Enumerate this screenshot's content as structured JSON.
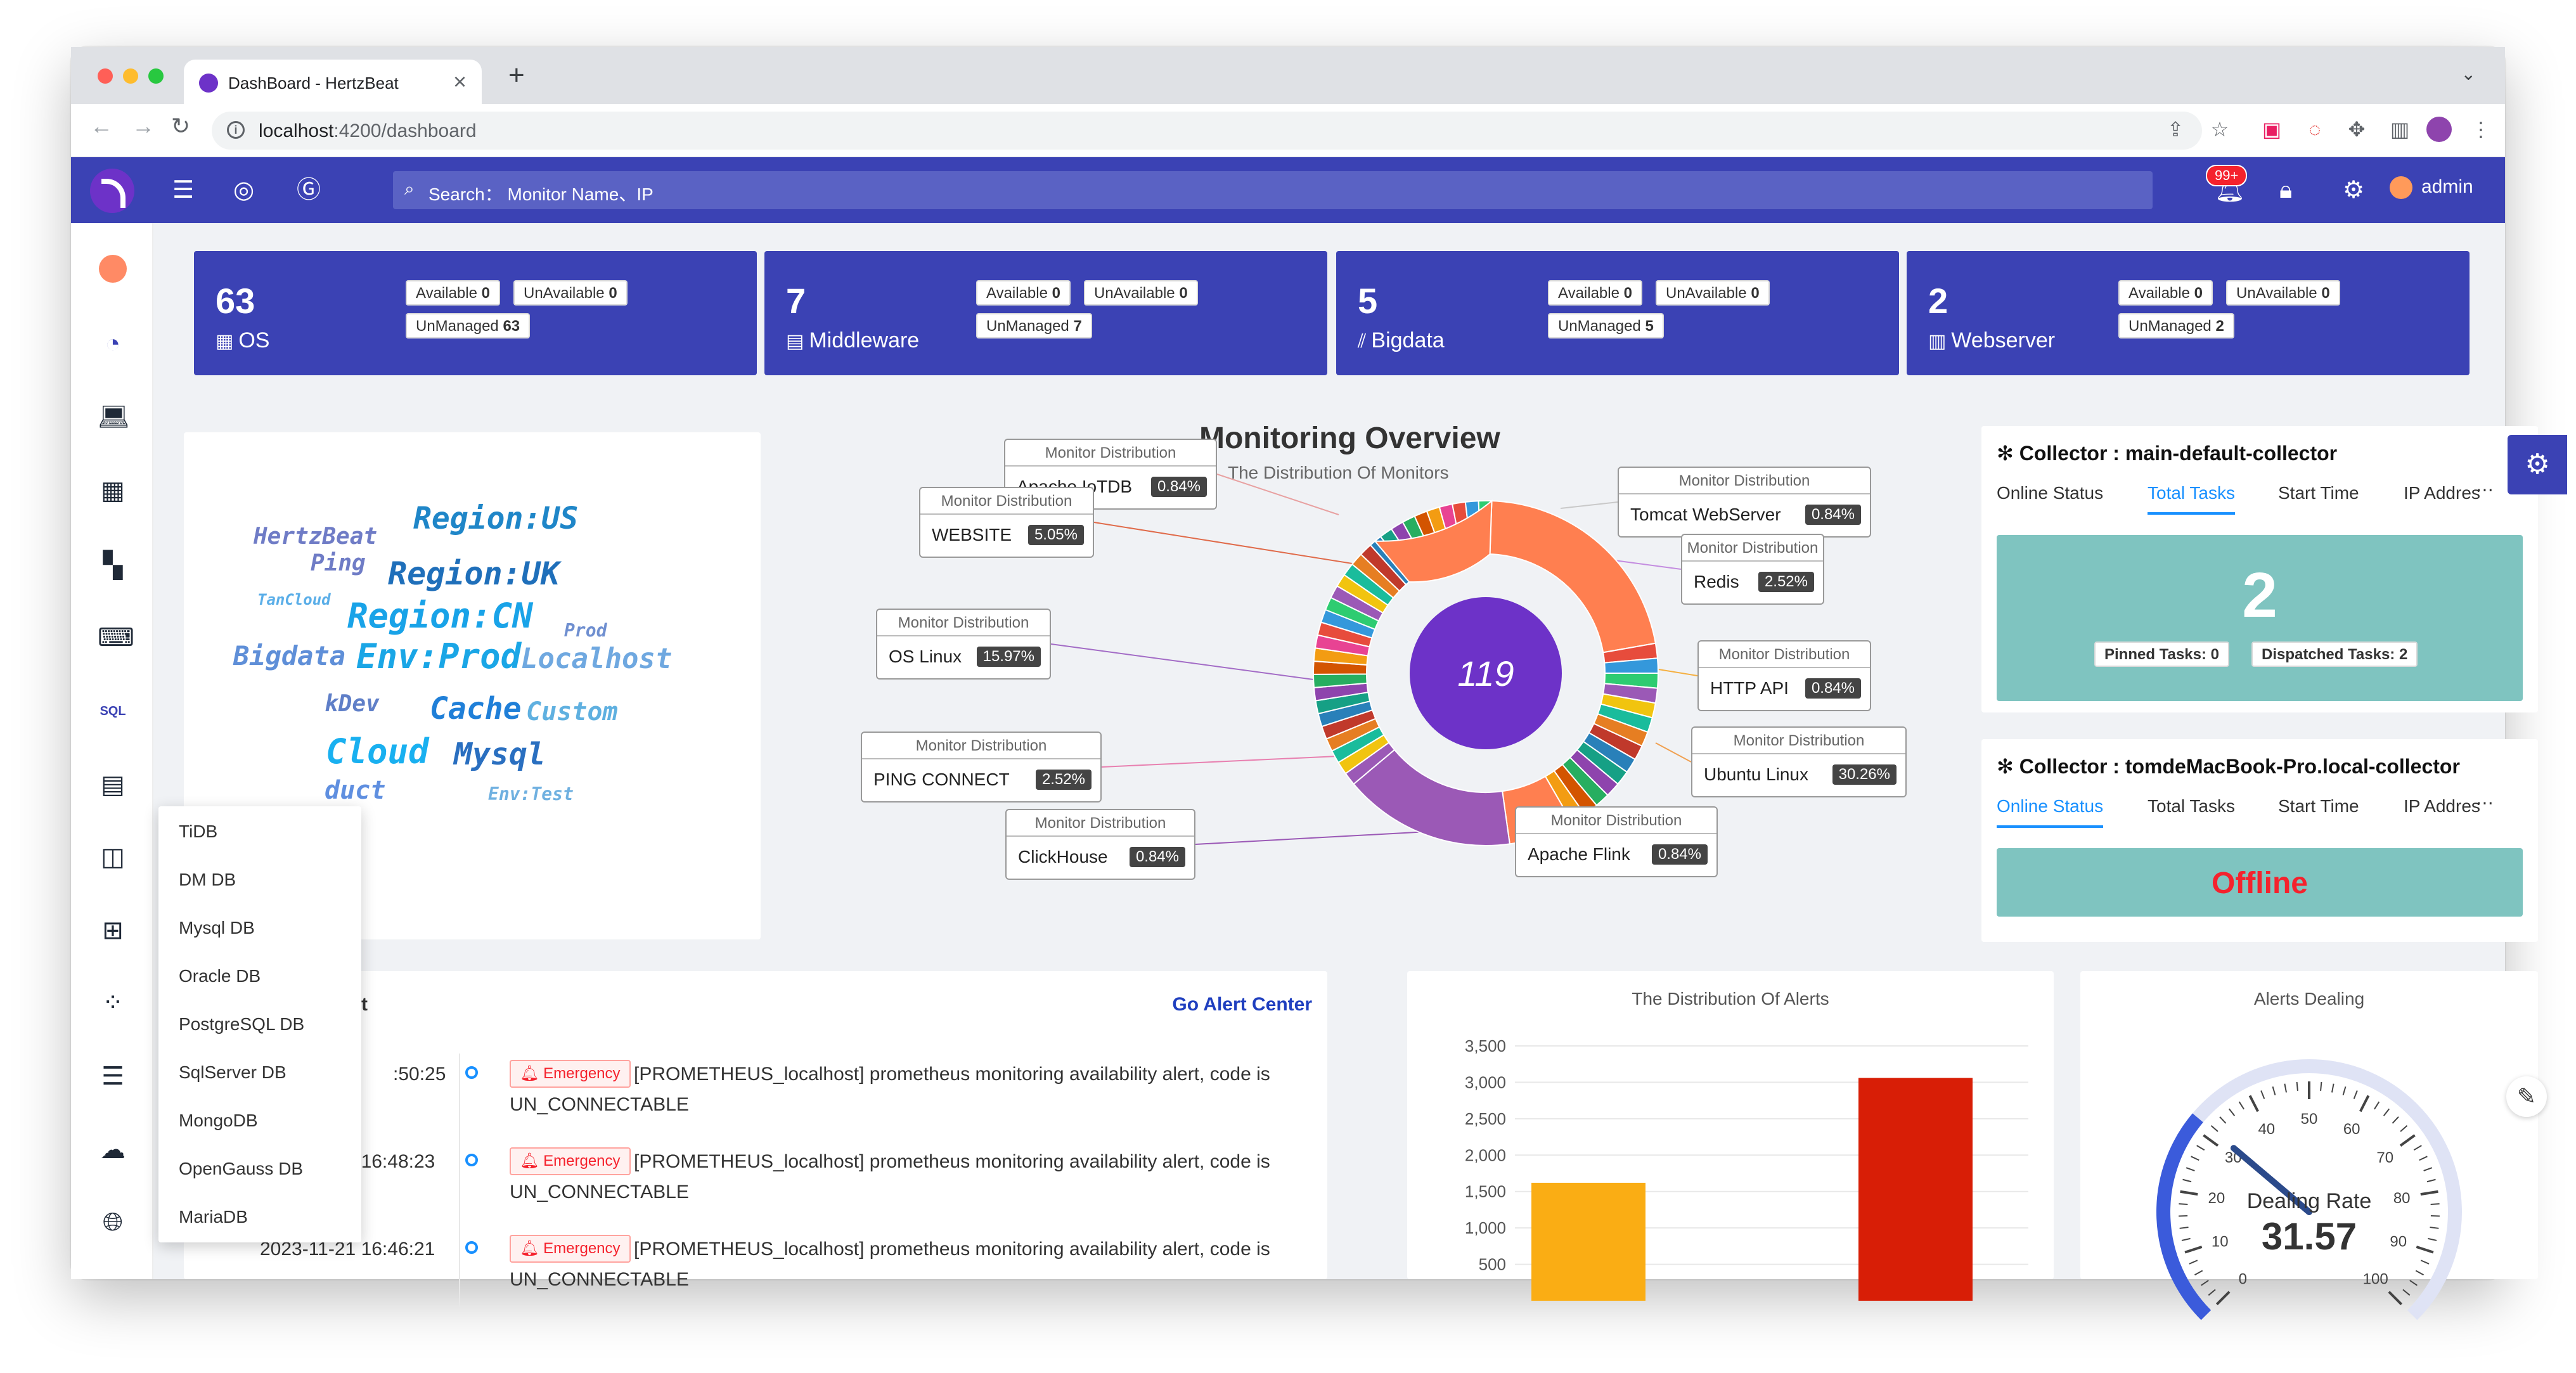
{
  "browser": {
    "tab_title": "DashBoard - HertzBeat",
    "url_host": "localhost",
    "url_rest": ":4200/dashboard"
  },
  "header": {
    "search_placeholder": "Search： Monitor Name、IP",
    "notification_badge": "99+",
    "username": "admin"
  },
  "stat_cards": [
    {
      "count": "63",
      "label": "OS",
      "icon": "os-grid-icon",
      "available": "0",
      "unavailable": "0",
      "unmanaged": "63"
    },
    {
      "count": "7",
      "label": "Middleware",
      "icon": "middleware-icon",
      "available": "0",
      "unavailable": "0",
      "unmanaged": "7"
    },
    {
      "count": "5",
      "label": "Bigdata",
      "icon": "bigdata-chart-icon",
      "available": "0",
      "unavailable": "0",
      "unmanaged": "5"
    },
    {
      "count": "2",
      "label": "Webserver",
      "icon": "server-icon",
      "available": "0",
      "unavailable": "0",
      "unmanaged": "2"
    }
  ],
  "stat_labels": {
    "available": "Available",
    "unavailable": "UnAvailable",
    "unmanaged": "UnManaged"
  },
  "wordcloud": [
    {
      "text": "Region:US",
      "color": "#1f86c8"
    },
    {
      "text": "HertzBeat",
      "color": "#6f7cc6"
    },
    {
      "text": "Ping",
      "color": "#6f7cc6"
    },
    {
      "text": "Region:UK",
      "color": "#1f6fba"
    },
    {
      "text": "TanCloud",
      "color": "#5aaee8"
    },
    {
      "text": "Region:CN",
      "color": "#19a3e8"
    },
    {
      "text": "Prod",
      "color": "#6f8fd0"
    },
    {
      "text": "Bigdata",
      "color": "#5f8fd8"
    },
    {
      "text": "Env:Prod",
      "color": "#1aa6e6"
    },
    {
      "text": "Localhost",
      "color": "#6fa8e0"
    },
    {
      "text": "kDev",
      "color": "#5f7fc8"
    },
    {
      "text": "Cache",
      "color": "#1f7fd8"
    },
    {
      "text": "Custom",
      "color": "#5fb0e0"
    },
    {
      "text": "Cloud",
      "color": "#19b0f0"
    },
    {
      "text": "Mysql",
      "color": "#2a6fc0"
    },
    {
      "text": "duct",
      "color": "#5f8fe0"
    },
    {
      "text": "Env:Test",
      "color": "#6fb0e0"
    }
  ],
  "overview": {
    "title": "Monitoring Overview",
    "subtitle": "The Distribution Of Monitors",
    "total": "119",
    "callout_header": "Monitor Distribution",
    "callouts": [
      {
        "name": "Apache IoTDB",
        "pct": "0.84%"
      },
      {
        "name": "Tomcat WebServer",
        "pct": "0.84%"
      },
      {
        "name": "WEBSITE",
        "pct": "5.05%"
      },
      {
        "name": "Redis",
        "pct": "2.52%"
      },
      {
        "name": "OS Linux",
        "pct": "15.97%"
      },
      {
        "name": "HTTP API",
        "pct": "0.84%"
      },
      {
        "name": "Ubuntu Linux",
        "pct": "30.26%"
      },
      {
        "name": "PING CONNECT",
        "pct": "2.52%"
      },
      {
        "name": "ClickHouse",
        "pct": "0.84%"
      },
      {
        "name": "Apache Flink",
        "pct": "0.84%"
      }
    ]
  },
  "collectors": [
    {
      "name": "Collector : main-default-collector",
      "tabs": [
        "Online Status",
        "Total Tasks",
        "Start Time",
        "IP Addres"
      ],
      "active_tab": 1,
      "total": "2",
      "pinned": "Pinned Tasks: 0",
      "dispatched": "Dispatched Tasks: 2"
    },
    {
      "name": "Collector : tomdeMacBook-Pro.local-collector",
      "tabs": [
        "Online Status",
        "Total Tasks",
        "Start Time",
        "IP Addres"
      ],
      "active_tab": 0,
      "status": "Offline"
    }
  ],
  "alerts": {
    "title_fragment": "t",
    "link": "Go Alert Center",
    "items": [
      {
        "time": ":50:25",
        "level": "Emergency",
        "line1": "[PROMETHEUS_localhost] prometheus monitoring availability alert, code is",
        "line2": "UN_CONNECTABLE"
      },
      {
        "time": "2023-11-21 16:48:23",
        "level": "Emergency",
        "line1": "[PROMETHEUS_localhost] prometheus monitoring availability alert, code is",
        "line2": "UN_CONNECTABLE"
      },
      {
        "time": "2023-11-21 16:46:21",
        "level": "Emergency",
        "line1": "[PROMETHEUS_localhost] prometheus monitoring availability alert, code is",
        "line2": "UN_CONNECTABLE"
      }
    ]
  },
  "alert_distribution": {
    "title": "The Distribution Of Alerts",
    "y_ticks": [
      "3,500",
      "3,000",
      "2,500",
      "2,000",
      "1,500",
      "1,000",
      "500"
    ],
    "colors": [
      "#faad14",
      "#d81e06"
    ]
  },
  "chart_data": {
    "type": "bar",
    "title": "The Distribution Of Alerts",
    "categories": [
      "",
      ""
    ],
    "values": [
      1620,
      3060
    ],
    "ylim": [
      0,
      3500
    ]
  },
  "gauge": {
    "title": "Alerts Dealing",
    "label": "Dealing Rate",
    "value": "31.57",
    "ticks": [
      "0",
      "10",
      "20",
      "30",
      "40",
      "50",
      "60",
      "70",
      "80",
      "90",
      "100"
    ]
  },
  "dropdown": {
    "items": [
      "TiDB",
      "DM DB",
      "Mysql DB",
      "Oracle DB",
      "PostgreSQL DB",
      "SqlServer DB",
      "MongoDB",
      "OpenGauss DB",
      "MariaDB"
    ]
  },
  "colors": {
    "header": "#3b42b4",
    "card": "#3b42b4",
    "collector_box": "#7fc4c0",
    "offline": "#f5222d",
    "donut_center": "#6d32c8"
  }
}
